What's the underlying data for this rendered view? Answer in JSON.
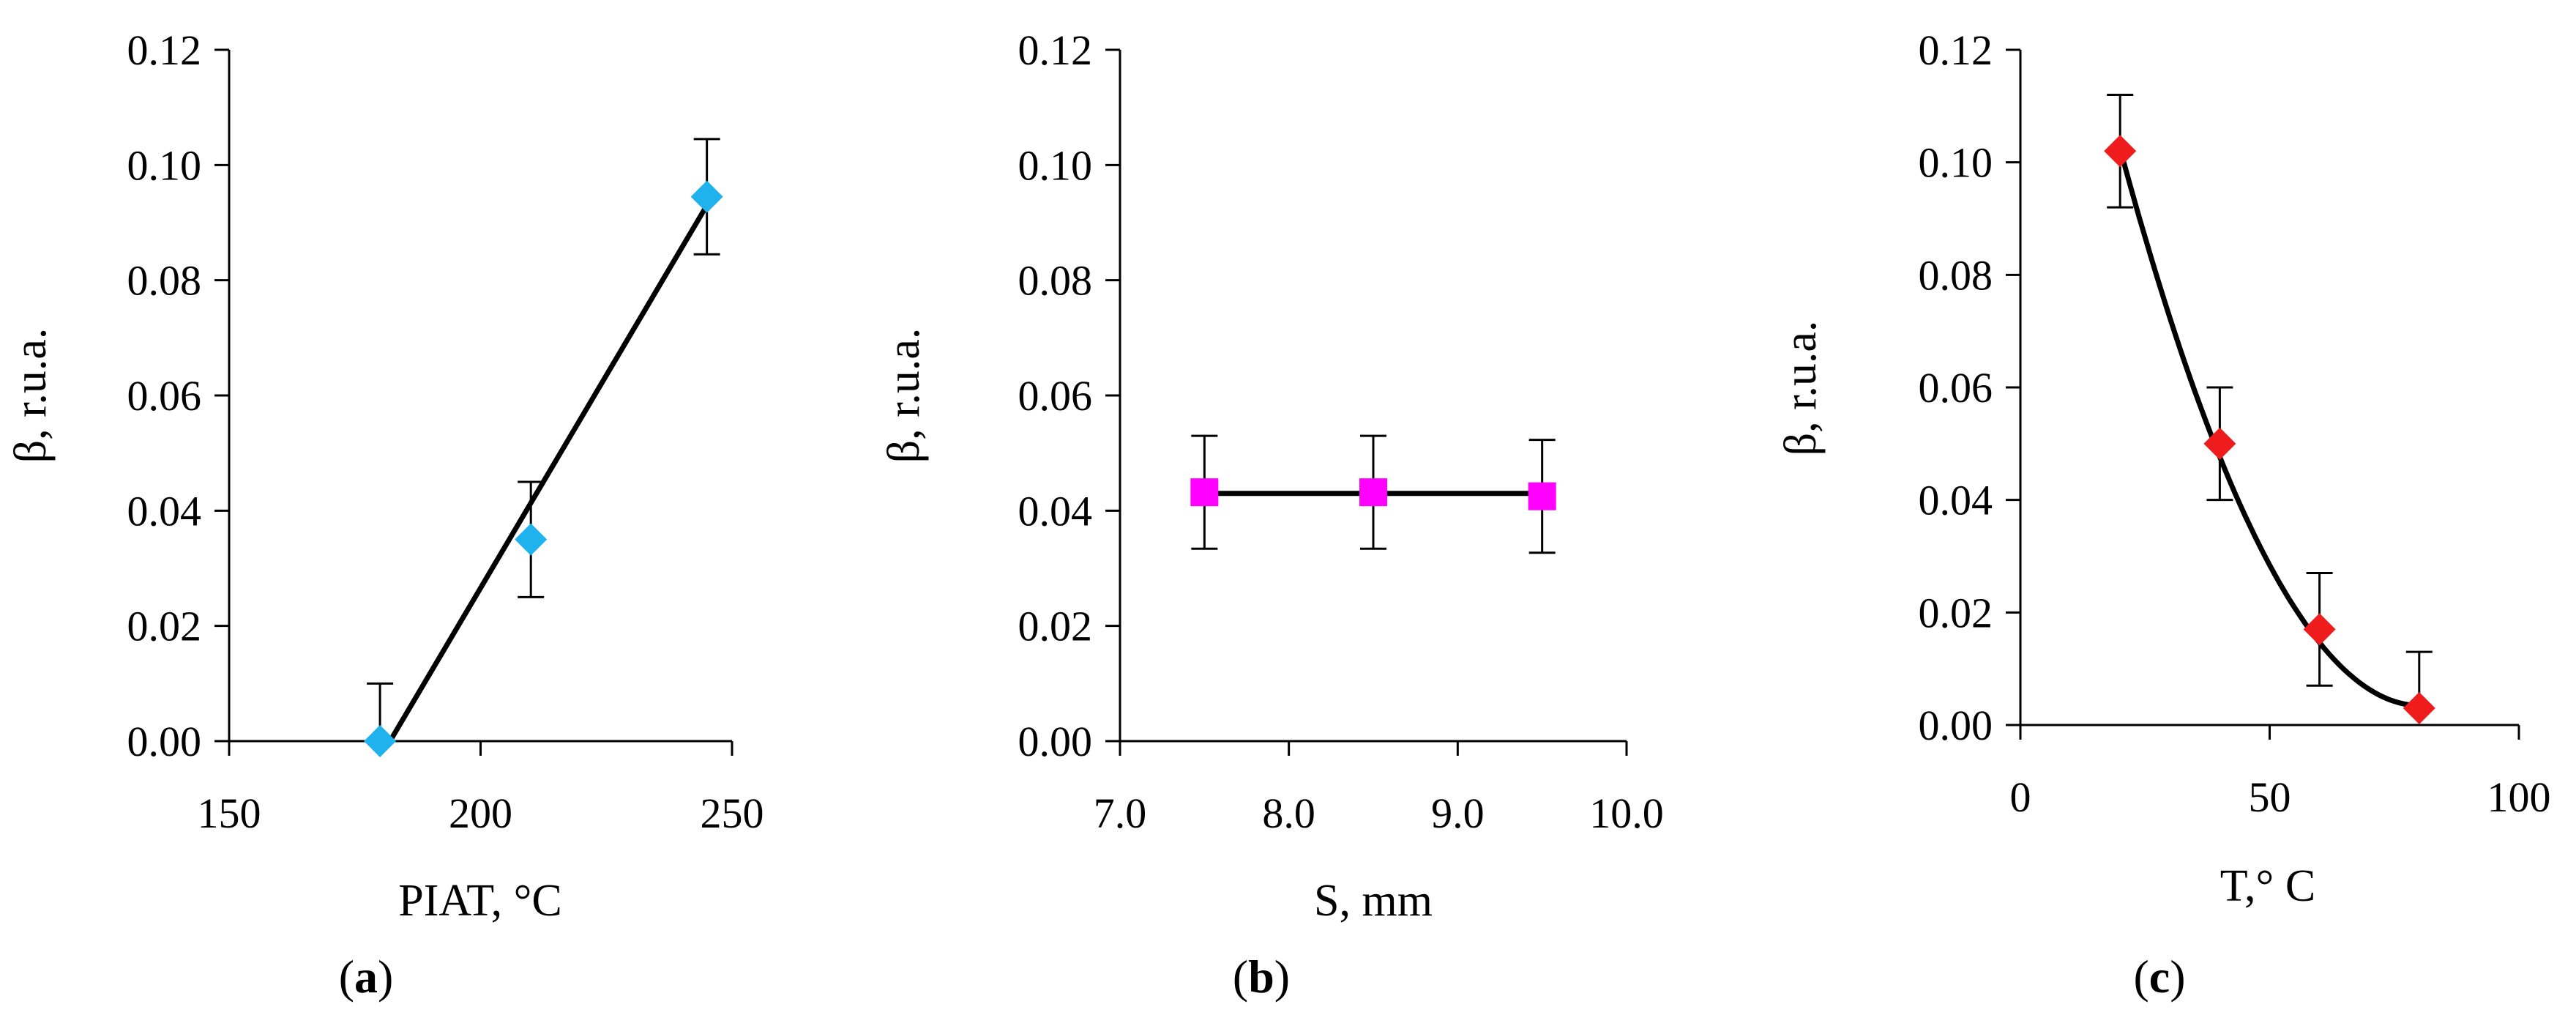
{
  "colors": {
    "axis": "#000000",
    "fit_line": "#000000",
    "error_bar": "#000000"
  },
  "chart_data": [
    {
      "type": "scatter",
      "panel": "(a)",
      "panel_letter": "a",
      "xlabel": "PIAT, °C",
      "ylabel": "β, r.u.a.",
      "xlim": [
        150,
        250
      ],
      "ylim": [
        0,
        0.12
      ],
      "x_ticks": [
        "150",
        "200",
        "250"
      ],
      "y_ticks": [
        "0.00",
        "0.02",
        "0.04",
        "0.06",
        "0.08",
        "0.10",
        "0.12"
      ],
      "marker": "diamond",
      "marker_color": "#1fb2ec",
      "points": [
        {
          "x": 180,
          "y": 0.0,
          "err": 0.01
        },
        {
          "x": 210,
          "y": 0.035,
          "err": 0.01
        },
        {
          "x": 245,
          "y": 0.0945,
          "err": 0.01
        }
      ],
      "fit": {
        "kind": "linear",
        "points": [
          [
            182,
            0.0
          ],
          [
            245,
            0.093
          ]
        ]
      }
    },
    {
      "type": "scatter",
      "panel": "(b)",
      "panel_letter": "b",
      "xlabel": "S, mm",
      "ylabel": "β, r.u.a.",
      "xlim": [
        7.0,
        10.0
      ],
      "ylim": [
        0,
        0.12
      ],
      "x_ticks": [
        "7.0",
        "8.0",
        "9.0",
        "10.0"
      ],
      "y_ticks": [
        "0.00",
        "0.02",
        "0.04",
        "0.06",
        "0.08",
        "0.10",
        "0.12"
      ],
      "marker": "square",
      "marker_color": "#ff00ff",
      "points": [
        {
          "x": 7.5,
          "y": 0.0432,
          "err": 0.0098
        },
        {
          "x": 8.5,
          "y": 0.0432,
          "err": 0.0098
        },
        {
          "x": 9.5,
          "y": 0.0425,
          "err": 0.0098
        }
      ],
      "fit": {
        "kind": "linear",
        "points": [
          [
            7.5,
            0.043
          ],
          [
            9.5,
            0.043
          ]
        ]
      }
    },
    {
      "type": "scatter",
      "panel": "(c)",
      "panel_letter": "c",
      "xlabel": "T,° C",
      "ylabel": "β, r.u.a.",
      "xlim": [
        0,
        100
      ],
      "ylim": [
        0,
        0.12
      ],
      "x_ticks": [
        "0",
        "50",
        "100"
      ],
      "y_ticks": [
        "0.00",
        "0.02",
        "0.04",
        "0.06",
        "0.08",
        "0.10",
        "0.12"
      ],
      "marker": "diamond",
      "marker_color": "#ee1c1c",
      "points": [
        {
          "x": 20,
          "y": 0.102,
          "err": 0.01
        },
        {
          "x": 40,
          "y": 0.05,
          "err": 0.01
        },
        {
          "x": 60,
          "y": 0.017,
          "err": 0.01
        },
        {
          "x": 80,
          "y": 0.003,
          "err": 0.01
        }
      ],
      "fit": {
        "kind": "quadratic",
        "coeffs": [
          0.17905,
          -0.004375,
          2.725e-05
        ],
        "range": [
          20,
          80
        ]
      }
    }
  ]
}
